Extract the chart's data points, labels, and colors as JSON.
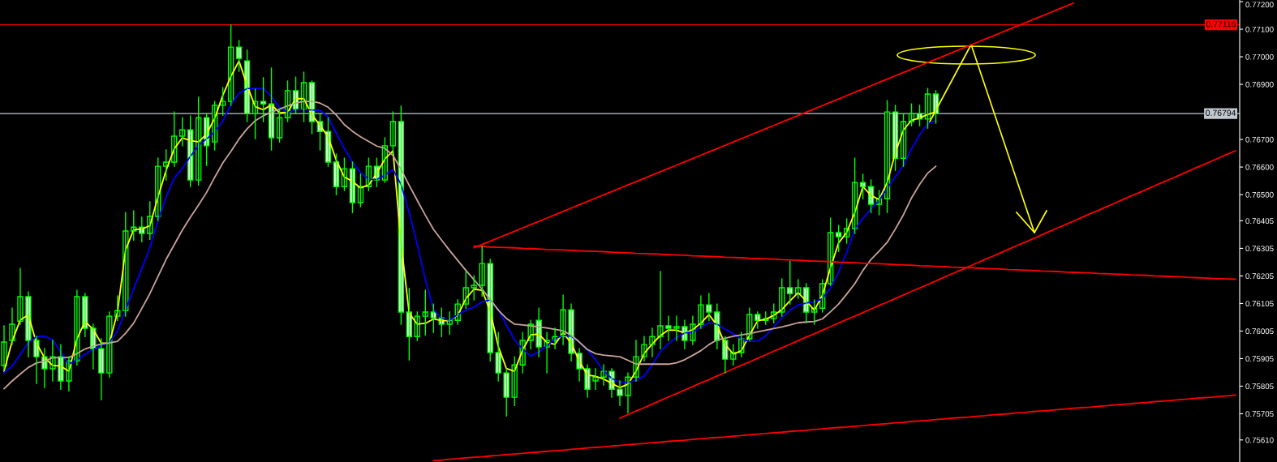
{
  "chart_data": {
    "type": "candlestick",
    "categories": [
      null,
      null,
      null,
      null,
      null,
      null,
      null,
      null,
      null,
      null,
      null,
      null,
      null,
      null,
      null,
      null,
      null,
      null,
      null,
      null,
      null,
      null,
      null,
      null,
      null,
      null,
      null,
      null,
      null,
      null,
      null,
      null,
      null,
      null,
      null,
      null,
      null,
      null,
      null,
      null,
      null,
      null,
      null,
      null,
      null,
      null,
      null,
      null,
      null,
      null,
      null,
      null,
      null,
      null,
      null,
      null,
      null,
      null,
      null,
      null,
      null,
      null,
      null,
      null,
      null,
      null,
      null,
      null,
      null,
      null,
      null,
      null,
      null,
      null,
      null,
      null,
      null,
      null,
      null,
      null,
      null,
      null,
      null,
      null,
      null,
      null,
      null,
      null,
      null,
      null,
      null,
      null,
      null,
      null,
      null,
      null,
      null,
      null,
      null,
      null,
      null,
      null,
      null,
      null,
      null,
      null,
      null,
      null,
      null,
      null,
      null,
      null,
      null,
      null,
      null,
      null,
      null,
      null,
      null,
      null,
      null,
      null,
      null,
      null,
      null,
      null,
      null,
      null,
      null,
      null,
      null,
      null,
      null,
      null,
      null,
      null,
      null,
      null,
      null,
      null,
      null,
      null,
      null,
      null,
      null,
      null,
      null,
      null,
      null,
      null,
      null,
      null,
      null
    ],
    "color": "#00ff00",
    "ohlc": [
      [
        0.7588,
        0.76024,
        0.75865,
        0.75965
      ],
      [
        0.75971,
        0.76088,
        0.75956,
        0.7603
      ],
      [
        0.76041,
        0.76232,
        0.7603,
        0.7613
      ],
      [
        0.7613,
        0.76147,
        0.75912,
        0.75971
      ],
      [
        0.75971,
        0.75985,
        0.75815,
        0.75912
      ],
      [
        0.75912,
        0.75941,
        0.758,
        0.75868
      ],
      [
        0.75868,
        0.75971,
        0.75824,
        0.75912
      ],
      [
        0.75912,
        0.75956,
        0.75794,
        0.75824
      ],
      [
        0.75824,
        0.75912,
        0.75788,
        0.75897
      ],
      [
        0.75897,
        0.76153,
        0.75882,
        0.7613
      ],
      [
        0.7613,
        0.76141,
        0.75985,
        0.76015
      ],
      [
        0.76015,
        0.7603,
        0.75868,
        0.75941
      ],
      [
        0.75941,
        0.75977,
        0.75756,
        0.75853
      ],
      [
        0.75853,
        0.76074,
        0.75838,
        0.76059
      ],
      [
        0.76059,
        0.76132,
        0.76044,
        0.76079
      ],
      [
        0.76079,
        0.76435,
        0.76059,
        0.76368
      ],
      [
        0.76368,
        0.76441,
        0.76335,
        0.76382
      ],
      [
        0.76382,
        0.76418,
        0.76329,
        0.76359
      ],
      [
        0.76359,
        0.76474,
        0.76338,
        0.76421
      ],
      [
        0.76421,
        0.76632,
        0.76406,
        0.76603
      ],
      [
        0.76603,
        0.76662,
        0.76553,
        0.76618
      ],
      [
        0.76618,
        0.768,
        0.76603,
        0.76712
      ],
      [
        0.76712,
        0.76779,
        0.76677,
        0.76735
      ],
      [
        0.76735,
        0.76785,
        0.76529,
        0.76553
      ],
      [
        0.76553,
        0.76853,
        0.76535,
        0.76779
      ],
      [
        0.76779,
        0.76794,
        0.76606,
        0.76677
      ],
      [
        0.76691,
        0.76838,
        0.76662,
        0.76824
      ],
      [
        0.76824,
        0.76888,
        0.76788,
        0.76838
      ],
      [
        0.76838,
        0.77115,
        0.76824,
        0.77035
      ],
      [
        0.77035,
        0.77059,
        0.76947,
        0.76994
      ],
      [
        0.76985,
        0.77024,
        0.76765,
        0.76794
      ],
      [
        0.76794,
        0.76882,
        0.76703,
        0.76838
      ],
      [
        0.76838,
        0.76924,
        0.76765,
        0.76829
      ],
      [
        0.76829,
        0.76959,
        0.76662,
        0.76706
      ],
      [
        0.76706,
        0.76809,
        0.76691,
        0.76779
      ],
      [
        0.76779,
        0.76912,
        0.76765,
        0.76877
      ],
      [
        0.76877,
        0.76926,
        0.76794,
        0.76809
      ],
      [
        0.76809,
        0.76944,
        0.76765,
        0.76906
      ],
      [
        0.76906,
        0.76912,
        0.76721,
        0.76765
      ],
      [
        0.76765,
        0.76794,
        0.76662,
        0.76729
      ],
      [
        0.76729,
        0.76779,
        0.76603,
        0.76618
      ],
      [
        0.76618,
        0.76647,
        0.765,
        0.76529
      ],
      [
        0.76529,
        0.76632,
        0.76515,
        0.76594
      ],
      [
        0.76594,
        0.76618,
        0.76435,
        0.76471
      ],
      [
        0.76471,
        0.76574,
        0.76456,
        0.76529
      ],
      [
        0.76529,
        0.76632,
        0.76515,
        0.76603
      ],
      [
        0.76603,
        0.76632,
        0.76529,
        0.76553
      ],
      [
        0.76553,
        0.76706,
        0.76544,
        0.76677
      ],
      [
        0.76677,
        0.768,
        0.76647,
        0.76765
      ],
      [
        0.76765,
        0.76821,
        0.7603,
        0.76074
      ],
      [
        0.76074,
        0.76159,
        0.759,
        0.75985
      ],
      [
        0.75985,
        0.76074,
        0.75971,
        0.76059
      ],
      [
        0.76059,
        0.76153,
        0.75991,
        0.76074
      ],
      [
        0.76074,
        0.76103,
        0.76,
        0.76053
      ],
      [
        0.76053,
        0.76088,
        0.75985,
        0.7603
      ],
      [
        0.7603,
        0.76074,
        0.75994,
        0.76044
      ],
      [
        0.76044,
        0.76118,
        0.7603,
        0.76103
      ],
      [
        0.76103,
        0.76221,
        0.76088,
        0.76162
      ],
      [
        0.76162,
        0.76206,
        0.76118,
        0.76171
      ],
      [
        0.76171,
        0.76312,
        0.76132,
        0.7625
      ],
      [
        0.7625,
        0.76265,
        0.75897,
        0.75927
      ],
      [
        0.75927,
        0.76,
        0.75824,
        0.75853
      ],
      [
        0.75853,
        0.75868,
        0.75697,
        0.75765
      ],
      [
        0.75765,
        0.75912,
        0.75735,
        0.75882
      ],
      [
        0.75882,
        0.76,
        0.75853,
        0.75971
      ],
      [
        0.75971,
        0.76044,
        0.75941,
        0.7603
      ],
      [
        0.76044,
        0.76088,
        0.75912,
        0.75947
      ],
      [
        0.75947,
        0.76,
        0.75853,
        0.75971
      ],
      [
        0.75971,
        0.76015,
        0.75941,
        0.75985
      ],
      [
        0.75985,
        0.76135,
        0.75956,
        0.76082
      ],
      [
        0.76082,
        0.76103,
        0.75897,
        0.75924
      ],
      [
        0.75924,
        0.75941,
        0.75824,
        0.75868
      ],
      [
        0.75868,
        0.75882,
        0.75765,
        0.75794
      ],
      [
        0.75824,
        0.75868,
        0.75794,
        0.75838
      ],
      [
        0.75838,
        0.75882,
        0.75809,
        0.75859
      ],
      [
        0.75859,
        0.75868,
        0.75765,
        0.75794
      ],
      [
        0.75794,
        0.75824,
        0.75735,
        0.75771
      ],
      [
        0.75771,
        0.75853,
        0.75709,
        0.75838
      ],
      [
        0.75838,
        0.75971,
        0.75824,
        0.75912
      ],
      [
        0.75912,
        0.75985,
        0.75897,
        0.75956
      ],
      [
        0.75956,
        0.76015,
        0.75912,
        0.75985
      ],
      [
        0.75985,
        0.76221,
        0.75941,
        0.76024
      ],
      [
        0.76024,
        0.76059,
        0.75971,
        0.76015
      ],
      [
        0.76015,
        0.76059,
        0.75971,
        0.76021
      ],
      [
        0.76021,
        0.76044,
        0.75941,
        0.75971
      ],
      [
        0.75971,
        0.76059,
        0.75956,
        0.7603
      ],
      [
        0.7603,
        0.76132,
        0.76015,
        0.761
      ],
      [
        0.761,
        0.76141,
        0.76044,
        0.76074
      ],
      [
        0.76074,
        0.76103,
        0.75941,
        0.75971
      ],
      [
        0.75971,
        0.75985,
        0.75853,
        0.75903
      ],
      [
        0.75903,
        0.75956,
        0.75882,
        0.75927
      ],
      [
        0.75927,
        0.76,
        0.75912,
        0.75977
      ],
      [
        0.75977,
        0.76088,
        0.75971,
        0.76065
      ],
      [
        0.76065,
        0.76074,
        0.76015,
        0.76044
      ],
      [
        0.76044,
        0.76074,
        0.7603,
        0.7605
      ],
      [
        0.7605,
        0.76103,
        0.76035,
        0.76074
      ],
      [
        0.76074,
        0.76194,
        0.76059,
        0.76162
      ],
      [
        0.76162,
        0.76259,
        0.76103,
        0.76141
      ],
      [
        0.76141,
        0.76191,
        0.76124,
        0.76162
      ],
      [
        0.76162,
        0.76177,
        0.76035,
        0.76074
      ],
      [
        0.76074,
        0.76118,
        0.7603,
        0.76088
      ],
      [
        0.76088,
        0.76191,
        0.76074,
        0.76177
      ],
      [
        0.76177,
        0.76415,
        0.76171,
        0.76362
      ],
      [
        0.76362,
        0.76388,
        0.76294,
        0.76347
      ],
      [
        0.76347,
        0.76412,
        0.76324,
        0.76377
      ],
      [
        0.76377,
        0.76632,
        0.76359,
        0.76544
      ],
      [
        0.76544,
        0.76574,
        0.76485,
        0.76529
      ],
      [
        0.76529,
        0.76553,
        0.76435,
        0.76465
      ],
      [
        0.76465,
        0.76515,
        0.76427,
        0.76485
      ],
      [
        0.76485,
        0.76841,
        0.76435,
        0.768
      ],
      [
        0.768,
        0.76824,
        0.76588,
        0.76632
      ],
      [
        0.76632,
        0.76794,
        0.76603,
        0.76765
      ],
      [
        0.76765,
        0.76829,
        0.7675,
        0.76794
      ],
      [
        0.76794,
        0.76824,
        0.7675,
        0.76774
      ],
      [
        0.76774,
        0.76885,
        0.76741,
        0.76865
      ],
      [
        0.76865,
        0.76877,
        0.76759,
        0.76794
      ],
      null,
      null,
      null,
      null,
      null,
      null,
      null,
      null,
      null,
      null,
      null,
      null,
      null,
      null,
      null,
      null,
      null,
      null,
      null,
      null,
      null,
      null,
      null,
      null,
      null,
      null,
      null,
      null,
      null,
      null,
      null,
      null,
      null,
      null,
      null,
      null,
      null
    ],
    "series": [
      {
        "type": "line",
        "color": "#ffff00",
        "values": [
          0.75859,
          0.75969,
          0.76045,
          0.76064,
          0.75961,
          0.75908,
          0.7588,
          0.75878,
          0.75859,
          0.75977,
          0.7604,
          0.76011,
          0.75961,
          0.75961,
          0.76074,
          0.763,
          0.76373,
          0.76375,
          0.76387,
          0.76492,
          0.76588,
          0.76666,
          0.76706,
          0.76696,
          0.76691,
          0.7672,
          0.76777,
          0.7686,
          0.76929,
          0.76985,
          0.76896,
          0.76819,
          0.76808,
          0.76826,
          0.76797,
          0.76799,
          0.76848,
          0.76848,
          0.76789,
          0.76752,
          0.76709,
          0.76625,
          0.76564,
          0.76548,
          0.76524,
          0.76535,
          0.76577,
          0.76629,
          0.76659,
          0.76324,
          0.7607,
          0.7603,
          0.76033,
          0.76049,
          0.76043,
          0.76043,
          0.76062,
          0.76123,
          0.76157,
          0.76153,
          0.76077,
          0.75949,
          0.75869,
          0.75859,
          0.75936,
          0.75991,
          0.75994,
          0.75963,
          0.75957,
          0.75999,
          0.75961,
          0.75896,
          0.75845,
          0.75841,
          0.75831,
          0.75815,
          0.758,
          0.75812,
          0.75859,
          0.75924,
          0.75958,
          0.75989,
          0.76009,
          0.76008,
          0.75998,
          0.7601,
          0.76034,
          0.76065,
          0.76025,
          0.75957,
          0.75921,
          0.75934,
          0.7599,
          0.76042,
          0.76048,
          0.76062,
          0.76083,
          0.76115,
          0.76144,
          0.76115,
          0.7608,
          0.76135,
          0.76235,
          0.76325,
          0.76363,
          0.76435,
          0.76529,
          0.76497,
          0.76482,
          0.76544,
          0.76651,
          0.76734,
          0.7677,
          0.76778,
          0.76791,
          0.768,
          null,
          null,
          null,
          null,
          null,
          null,
          null,
          null,
          null,
          null,
          null,
          null,
          null,
          null,
          null,
          null,
          null,
          null,
          null,
          null,
          null,
          null,
          null,
          null,
          null,
          null,
          null,
          null,
          null,
          null,
          null,
          null,
          null,
          null,
          null,
          null,
          null
        ]
      },
      {
        "type": "line",
        "color": "#0000ff",
        "values": [
          0.75854,
          0.75878,
          0.7592,
          0.75963,
          0.75985,
          0.75987,
          0.75973,
          0.75929,
          0.75885,
          0.759,
          0.75921,
          0.75939,
          0.75952,
          0.75964,
          0.76005,
          0.76081,
          0.76158,
          0.76231,
          0.76307,
          0.76406,
          0.7649,
          0.7656,
          0.76595,
          0.76639,
          0.76678,
          0.76702,
          0.76728,
          0.76767,
          0.76826,
          0.76868,
          0.76885,
          0.76885,
          0.76885,
          0.76856,
          0.76816,
          0.76798,
          0.76808,
          0.76808,
          0.76807,
          0.76806,
          0.76781,
          0.76723,
          0.76667,
          0.76618,
          0.7658,
          0.76555,
          0.76555,
          0.76571,
          0.76591,
          0.76537,
          0.76435,
          0.76319,
          0.76191,
          0.76084,
          0.76051,
          0.76044,
          0.76065,
          0.76081,
          0.76092,
          0.76111,
          0.76118,
          0.76083,
          0.76027,
          0.75974,
          0.75939,
          0.75915,
          0.75929,
          0.75952,
          0.75977,
          0.7599,
          0.75986,
          0.75965,
          0.75936,
          0.75901,
          0.75861,
          0.75833,
          0.7582,
          0.75819,
          0.75826,
          0.75842,
          0.75883,
          0.7593,
          0.75959,
          0.75982,
          0.75998,
          0.76002,
          0.76018,
          0.76035,
          0.7603,
          0.76012,
          0.75995,
          0.75977,
          0.75968,
          0.75969,
          0.75988,
          0.7602,
          0.76054,
          0.76081,
          0.76099,
          0.76107,
          0.76111,
          0.76122,
          0.76161,
          0.76219,
          0.7629,
          0.76374,
          0.76414,
          0.76448,
          0.76479,
          0.76523,
          0.76564,
          0.76606,
          0.76666,
          0.76717,
          0.76757,
          0.76768,
          null,
          null,
          null,
          null,
          null,
          null,
          null,
          null,
          null,
          null,
          null,
          null,
          null,
          null,
          null,
          null,
          null,
          null,
          null,
          null,
          null,
          null,
          null,
          null,
          null,
          null,
          null,
          null,
          null,
          null,
          null,
          null,
          null,
          null,
          null,
          null,
          null
        ]
      },
      {
        "type": "line",
        "color": "#c9a39b",
        "values": [
          0.75796,
          0.75824,
          0.75849,
          0.75873,
          0.75889,
          0.75896,
          0.75908,
          0.75909,
          0.75909,
          0.75923,
          0.7594,
          0.7595,
          0.75958,
          0.75962,
          0.75968,
          0.75997,
          0.76034,
          0.76087,
          0.76141,
          0.76203,
          0.76265,
          0.76318,
          0.76371,
          0.76418,
          0.76462,
          0.76508,
          0.76563,
          0.76615,
          0.76657,
          0.76702,
          0.76739,
          0.76768,
          0.76786,
          0.768,
          0.7681,
          0.76822,
          0.76832,
          0.76838,
          0.76838,
          0.76832,
          0.76817,
          0.76789,
          0.76754,
          0.7673,
          0.7671,
          0.76693,
          0.76676,
          0.76668,
          0.76642,
          0.76591,
          0.76534,
          0.76479,
          0.76425,
          0.76374,
          0.76335,
          0.76297,
          0.76261,
          0.76225,
          0.76191,
          0.76157,
          0.7612,
          0.76081,
          0.76051,
          0.7603,
          0.76027,
          0.76024,
          0.7602,
          0.76016,
          0.76011,
          0.76006,
          0.7599,
          0.75965,
          0.75938,
          0.75923,
          0.75918,
          0.75915,
          0.75912,
          0.75899,
          0.75885,
          0.75885,
          0.75885,
          0.75885,
          0.75885,
          0.7589,
          0.75901,
          0.75917,
          0.75934,
          0.75956,
          0.75973,
          0.75979,
          0.75986,
          0.75991,
          0.75996,
          0.76002,
          0.76008,
          0.76014,
          0.7602,
          0.76027,
          0.76035,
          0.76038,
          0.7604,
          0.76049,
          0.76075,
          0.76103,
          0.76139,
          0.76177,
          0.76225,
          0.76265,
          0.76295,
          0.76327,
          0.76375,
          0.76427,
          0.76488,
          0.76537,
          0.76578,
          0.76603,
          null,
          null,
          null,
          null,
          null,
          null,
          null,
          null,
          null,
          null,
          null,
          null,
          null,
          null,
          null,
          null,
          null,
          null,
          null,
          null,
          null,
          null,
          null,
          null,
          null,
          null,
          null,
          null,
          null,
          null,
          null,
          null,
          null,
          null,
          null,
          null,
          null
        ]
      },
      {
        "type": "line",
        "color": "#ff0000",
        "values": [
          null,
          null,
          null,
          null,
          null,
          null,
          null,
          null,
          null,
          null,
          null,
          null,
          null,
          null,
          null,
          null,
          null,
          null,
          null,
          null,
          null,
          null,
          null,
          null,
          null,
          null,
          null,
          null,
          null,
          null,
          null,
          null,
          null,
          null,
          null,
          null,
          null,
          null,
          null,
          null,
          null,
          null,
          null,
          null,
          null,
          null,
          null,
          null,
          null,
          null,
          null,
          null,
          null,
          null,
          null,
          null,
          null,
          null,
          0.76307,
          0.76319,
          0.76331,
          0.76343,
          0.76355,
          0.76367,
          0.76379,
          0.76391,
          0.76403,
          0.76415,
          0.76427,
          0.76439,
          0.76451,
          0.76463,
          0.76475,
          0.76487,
          0.76499,
          0.76511,
          0.76523,
          0.76535,
          0.76547,
          0.76559,
          0.76571,
          0.76583,
          0.76595,
          0.76607,
          0.76619,
          0.76631,
          0.76643,
          0.76655,
          0.76667,
          0.76679,
          0.76691,
          0.76703,
          0.76715,
          0.76727,
          0.76739,
          0.76751,
          0.76763,
          0.76775,
          0.76787,
          0.76799,
          0.76811,
          0.76823,
          0.76835,
          0.76847,
          0.76859,
          0.76871,
          0.76883,
          0.76895,
          0.76907,
          0.76919,
          0.76931,
          0.76943,
          0.76955,
          0.76967,
          0.76979,
          0.76991,
          0.77003,
          0.77015,
          0.77027,
          0.77039,
          0.77051,
          0.77063,
          0.77075,
          0.77087,
          0.77099,
          0.77111,
          0.77123,
          0.77135,
          0.77147,
          0.77159,
          0.77171,
          0.77183,
          0.77195,
          null,
          null,
          null,
          null,
          null,
          null,
          null,
          null,
          null,
          null,
          null,
          null,
          null,
          null,
          null,
          null,
          null,
          null,
          null,
          null
        ]
      },
      {
        "type": "line",
        "color": "#ff0000",
        "values": [
          null,
          null,
          null,
          null,
          null,
          null,
          null,
          null,
          null,
          null,
          null,
          null,
          null,
          null,
          null,
          null,
          null,
          null,
          null,
          null,
          null,
          null,
          null,
          null,
          null,
          null,
          null,
          null,
          null,
          null,
          null,
          null,
          null,
          null,
          null,
          null,
          null,
          null,
          null,
          null,
          null,
          null,
          null,
          null,
          null,
          null,
          null,
          null,
          null,
          null,
          null,
          null,
          null,
          null,
          null,
          null,
          null,
          null,
          0.76313,
          0.76312,
          0.7631,
          0.76309,
          0.76308,
          0.76307,
          0.76305,
          0.76304,
          0.76303,
          0.76301,
          0.763,
          0.76299,
          0.76298,
          0.76296,
          0.76295,
          0.76294,
          0.76293,
          0.76291,
          0.7629,
          0.76289,
          0.76287,
          0.76286,
          0.76285,
          0.76284,
          0.76282,
          0.76281,
          0.7628,
          0.76278,
          0.76277,
          0.76276,
          0.76275,
          0.76273,
          0.76272,
          0.76271,
          0.76269,
          0.76268,
          0.76267,
          0.76266,
          0.76264,
          0.76263,
          0.76262,
          0.7626,
          0.76259,
          0.76258,
          0.76257,
          0.76255,
          0.76254,
          0.76253,
          0.76251,
          0.7625,
          0.76249,
          0.76248,
          0.76246,
          0.76245,
          0.76244,
          0.76242,
          0.76241,
          0.7624,
          0.76239,
          0.76237,
          0.76236,
          0.76235,
          0.76234,
          0.76232,
          0.76231,
          0.7623,
          0.76228,
          0.76227,
          0.76226,
          0.76225,
          0.76223,
          0.76222,
          0.76221,
          0.76219,
          0.76218,
          0.76217,
          0.76216,
          0.76214,
          0.76213,
          0.76212,
          0.76211,
          0.76209,
          0.76208,
          0.76207,
          0.76205,
          0.76204,
          0.76203,
          0.76202,
          0.762,
          0.76199,
          0.76198,
          0.76196,
          0.76195,
          0.76194,
          0.76193
        ]
      },
      {
        "type": "line",
        "color": "#ff0000",
        "values": [
          null,
          null,
          null,
          null,
          null,
          null,
          null,
          null,
          null,
          null,
          null,
          null,
          null,
          null,
          null,
          null,
          null,
          null,
          null,
          null,
          null,
          null,
          null,
          null,
          null,
          null,
          null,
          null,
          null,
          null,
          null,
          null,
          null,
          null,
          null,
          null,
          null,
          null,
          null,
          null,
          null,
          null,
          null,
          null,
          null,
          null,
          null,
          null,
          null,
          null,
          null,
          null,
          null,
          null,
          null,
          null,
          null,
          null,
          null,
          null,
          null,
          null,
          null,
          null,
          null,
          null,
          null,
          null,
          null,
          null,
          null,
          null,
          null,
          null,
          null,
          null,
          0.75689,
          0.75702,
          0.75715,
          0.75727,
          0.7574,
          0.75753,
          0.75766,
          0.75778,
          0.75791,
          0.75804,
          0.75817,
          0.75829,
          0.75842,
          0.75855,
          0.75868,
          0.75881,
          0.75893,
          0.75906,
          0.75919,
          0.75932,
          0.75944,
          0.75957,
          0.7597,
          0.75983,
          0.75995,
          0.76008,
          0.76021,
          0.76034,
          0.76047,
          0.76059,
          0.76072,
          0.76085,
          0.76098,
          0.7611,
          0.76123,
          0.76136,
          0.76149,
          0.76161,
          0.76174,
          0.76187,
          0.762,
          0.76213,
          0.76225,
          0.76238,
          0.76251,
          0.76264,
          0.76276,
          0.76289,
          0.76302,
          0.76315,
          0.76327,
          0.7634,
          0.76353,
          0.76366,
          0.76379,
          0.76391,
          0.76404,
          0.76417,
          0.7643,
          0.76442,
          0.76455,
          0.76468,
          0.76481,
          0.76494,
          0.76506,
          0.76519,
          0.76532,
          0.76545,
          0.76557,
          0.7657,
          0.76583,
          0.76596,
          0.76608,
          0.76621,
          0.76634,
          0.76647,
          0.76659
        ]
      },
      {
        "type": "line",
        "color": "#ff0000",
        "values": [
          null,
          null,
          null,
          null,
          null,
          null,
          null,
          null,
          null,
          null,
          null,
          null,
          null,
          null,
          null,
          null,
          null,
          null,
          null,
          null,
          null,
          null,
          null,
          null,
          null,
          null,
          null,
          null,
          null,
          null,
          null,
          null,
          null,
          null,
          null,
          null,
          null,
          null,
          null,
          null,
          null,
          null,
          null,
          null,
          null,
          null,
          null,
          null,
          null,
          null,
          null,
          null,
          null,
          0.75535,
          0.75537,
          0.7554,
          0.75542,
          0.75545,
          0.75547,
          0.75549,
          0.75552,
          0.75554,
          0.75557,
          0.75559,
          0.75561,
          0.75564,
          0.75566,
          0.75569,
          0.75571,
          0.75573,
          0.75576,
          0.75578,
          0.75581,
          0.75583,
          0.75585,
          0.75588,
          0.7559,
          0.75593,
          0.75595,
          0.75597,
          0.756,
          0.75602,
          0.75605,
          0.75607,
          0.75609,
          0.75612,
          0.75614,
          0.75617,
          0.75619,
          0.75621,
          0.75624,
          0.75626,
          0.75629,
          0.75631,
          0.75633,
          0.75636,
          0.75638,
          0.75641,
          0.75643,
          0.75645,
          0.75648,
          0.7565,
          0.75653,
          0.75655,
          0.75657,
          0.7566,
          0.75662,
          0.75665,
          0.75667,
          0.75669,
          0.75672,
          0.75674,
          0.75677,
          0.75679,
          0.75681,
          0.75684,
          0.75686,
          0.75689,
          0.75691,
          0.75693,
          0.75696,
          0.75698,
          0.75701,
          0.75703,
          0.75705,
          0.75708,
          0.7571,
          0.75713,
          0.75715,
          0.75717,
          0.7572,
          0.75722,
          0.75725,
          0.75727,
          0.75729,
          0.75732,
          0.75734,
          0.75737,
          0.75739,
          0.75741,
          0.75744,
          0.75746,
          0.75749,
          0.75751,
          0.75753,
          0.75756,
          0.75758,
          0.75761,
          0.75763,
          0.75765,
          0.75768,
          0.7577,
          0.75773
        ]
      }
    ],
    "ref_lines": [
      {
        "axis": "y",
        "value": 0.77116,
        "label": "0.77116",
        "color": "#ff0000"
      },
      {
        "axis": "y",
        "value": 0.76794,
        "label": "0.76794",
        "color": "#c0c8d0"
      }
    ],
    "ylim": [
      0.7553,
      0.77206
    ],
    "yticks": [
      {
        "value": 0.772,
        "label": "0.77200"
      },
      {
        "value": 0.771,
        "label": "0.77100"
      },
      {
        "value": 0.77,
        "label": "0.77000"
      },
      {
        "value": 0.769,
        "label": "0.76900"
      },
      {
        "value": 0.767,
        "label": "0.76700"
      },
      {
        "value": 0.766,
        "label": "0.76600"
      },
      {
        "value": 0.765,
        "label": "0.76500"
      },
      {
        "value": 0.76405,
        "label": "0.76405"
      },
      {
        "value": 0.76305,
        "label": "0.76305"
      },
      {
        "value": 0.76205,
        "label": "0.76205"
      },
      {
        "value": 0.76105,
        "label": "0.76105"
      },
      {
        "value": 0.76005,
        "label": "0.76005"
      },
      {
        "value": 0.75905,
        "label": "0.75905"
      },
      {
        "value": 0.75805,
        "label": "0.75805"
      },
      {
        "value": 0.75705,
        "label": "0.75705"
      },
      {
        "value": 0.7561,
        "label": "0.75610"
      }
    ],
    "tick_labels": "y"
  }
}
